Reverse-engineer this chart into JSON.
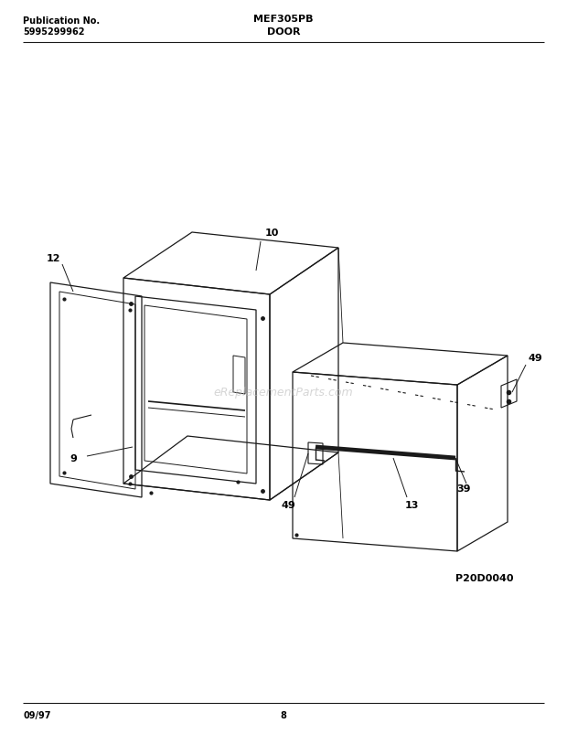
{
  "title_left": "Publication No.",
  "pub_number": "5995299962",
  "title_center": "MEF305PB",
  "subtitle_center": "DOOR",
  "footer_left": "09/97",
  "footer_center": "8",
  "diagram_code": "P20D0040",
  "watermark": "eReplacementParts.com",
  "bg_color": "#ffffff",
  "line_color": "#1a1a1a",
  "line_width": 0.9
}
